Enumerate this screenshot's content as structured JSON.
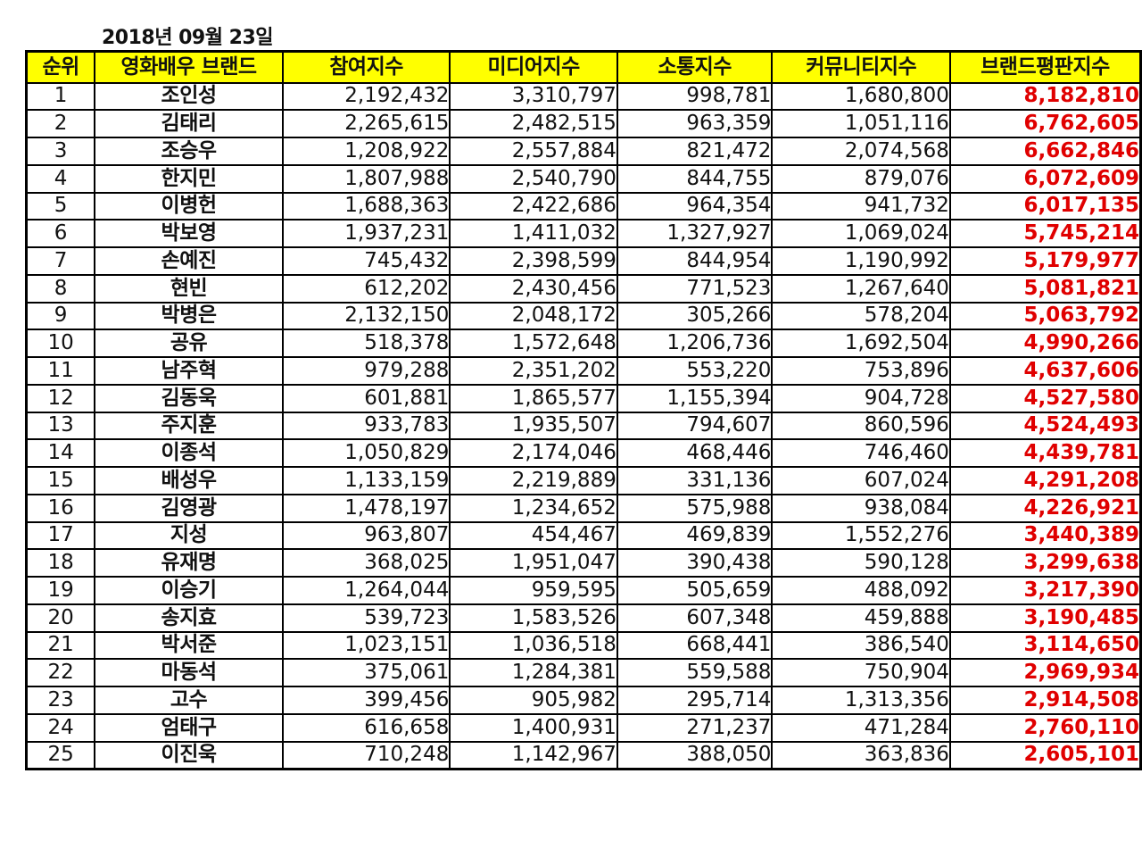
{
  "date": "2018년 09월 23일",
  "headers": [
    "순위",
    "영화배우 브랜드",
    "참여지수",
    "미디어지수",
    "소통지수",
    "커뮤니티지수",
    "브랜드평판지수"
  ],
  "rows": [
    {
      "rank": "1",
      "name": "조인성",
      "participation": "2,192,432",
      "media": "3,310,797",
      "communication": "998,781",
      "community": "1,680,800",
      "brand": "8,182,810"
    },
    {
      "rank": "2",
      "name": "김태리",
      "participation": "2,265,615",
      "media": "2,482,515",
      "communication": "963,359",
      "community": "1,051,116",
      "brand": "6,762,605"
    },
    {
      "rank": "3",
      "name": "조승우",
      "participation": "1,208,922",
      "media": "2,557,884",
      "communication": "821,472",
      "community": "2,074,568",
      "brand": "6,662,846"
    },
    {
      "rank": "4",
      "name": "한지민",
      "participation": "1,807,988",
      "media": "2,540,790",
      "communication": "844,755",
      "community": "879,076",
      "brand": "6,072,609"
    },
    {
      "rank": "5",
      "name": "이병헌",
      "participation": "1,688,363",
      "media": "2,422,686",
      "communication": "964,354",
      "community": "941,732",
      "brand": "6,017,135"
    },
    {
      "rank": "6",
      "name": "박보영",
      "participation": "1,937,231",
      "media": "1,411,032",
      "communication": "1,327,927",
      "community": "1,069,024",
      "brand": "5,745,214"
    },
    {
      "rank": "7",
      "name": "손예진",
      "participation": "745,432",
      "media": "2,398,599",
      "communication": "844,954",
      "community": "1,190,992",
      "brand": "5,179,977"
    },
    {
      "rank": "8",
      "name": "현빈",
      "participation": "612,202",
      "media": "2,430,456",
      "communication": "771,523",
      "community": "1,267,640",
      "brand": "5,081,821"
    },
    {
      "rank": "9",
      "name": "박병은",
      "participation": "2,132,150",
      "media": "2,048,172",
      "communication": "305,266",
      "community": "578,204",
      "brand": "5,063,792"
    },
    {
      "rank": "10",
      "name": "공유",
      "participation": "518,378",
      "media": "1,572,648",
      "communication": "1,206,736",
      "community": "1,692,504",
      "brand": "4,990,266"
    },
    {
      "rank": "11",
      "name": "남주혁",
      "participation": "979,288",
      "media": "2,351,202",
      "communication": "553,220",
      "community": "753,896",
      "brand": "4,637,606"
    },
    {
      "rank": "12",
      "name": "김동욱",
      "participation": "601,881",
      "media": "1,865,577",
      "communication": "1,155,394",
      "community": "904,728",
      "brand": "4,527,580"
    },
    {
      "rank": "13",
      "name": "주지훈",
      "participation": "933,783",
      "media": "1,935,507",
      "communication": "794,607",
      "community": "860,596",
      "brand": "4,524,493"
    },
    {
      "rank": "14",
      "name": "이종석",
      "participation": "1,050,829",
      "media": "2,174,046",
      "communication": "468,446",
      "community": "746,460",
      "brand": "4,439,781"
    },
    {
      "rank": "15",
      "name": "배성우",
      "participation": "1,133,159",
      "media": "2,219,889",
      "communication": "331,136",
      "community": "607,024",
      "brand": "4,291,208"
    },
    {
      "rank": "16",
      "name": "김영광",
      "participation": "1,478,197",
      "media": "1,234,652",
      "communication": "575,988",
      "community": "938,084",
      "brand": "4,226,921"
    },
    {
      "rank": "17",
      "name": "지성",
      "participation": "963,807",
      "media": "454,467",
      "communication": "469,839",
      "community": "1,552,276",
      "brand": "3,440,389"
    },
    {
      "rank": "18",
      "name": "유재명",
      "participation": "368,025",
      "media": "1,951,047",
      "communication": "390,438",
      "community": "590,128",
      "brand": "3,299,638"
    },
    {
      "rank": "19",
      "name": "이승기",
      "participation": "1,264,044",
      "media": "959,595",
      "communication": "505,659",
      "community": "488,092",
      "brand": "3,217,390"
    },
    {
      "rank": "20",
      "name": "송지효",
      "participation": "539,723",
      "media": "1,583,526",
      "communication": "607,348",
      "community": "459,888",
      "brand": "3,190,485"
    },
    {
      "rank": "21",
      "name": "박서준",
      "participation": "1,023,151",
      "media": "1,036,518",
      "communication": "668,441",
      "community": "386,540",
      "brand": "3,114,650"
    },
    {
      "rank": "22",
      "name": "마동석",
      "participation": "375,061",
      "media": "1,284,381",
      "communication": "559,588",
      "community": "750,904",
      "brand": "2,969,934"
    },
    {
      "rank": "23",
      "name": "고수",
      "participation": "399,456",
      "media": "905,982",
      "communication": "295,714",
      "community": "1,313,356",
      "brand": "2,914,508"
    },
    {
      "rank": "24",
      "name": "엄태구",
      "participation": "616,658",
      "media": "1,400,931",
      "communication": "271,237",
      "community": "471,284",
      "brand": "2,760,110"
    },
    {
      "rank": "25",
      "name": "이진욱",
      "participation": "710,248",
      "media": "1,142,967",
      "communication": "388,050",
      "community": "363,836",
      "brand": "2,605,101"
    }
  ],
  "colors": {
    "header_background": "#ffff00",
    "brand_score_text": "#e00000",
    "border": "#000000"
  }
}
